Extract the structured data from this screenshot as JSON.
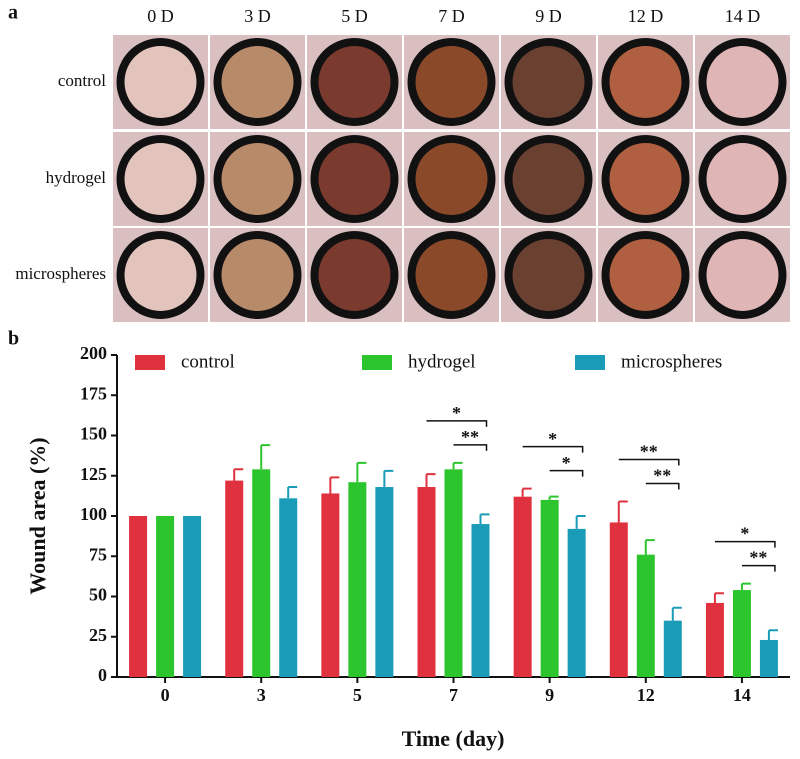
{
  "panel_a": {
    "label": "a",
    "columns": [
      "0 D",
      "3 D",
      "5 D",
      "7 D",
      "9 D",
      "12 D",
      "14 D"
    ],
    "rows": [
      "control",
      "hydrogel",
      "microspheres"
    ]
  },
  "chart_data": {
    "type": "bar",
    "panel_label": "b",
    "x_label": "Time (day)",
    "y_label": "Wound area (%)",
    "categories": [
      "0",
      "3",
      "5",
      "7",
      "9",
      "12",
      "14"
    ],
    "series": [
      {
        "name": "control",
        "color": "#e0313f",
        "values": [
          100,
          122,
          114,
          118,
          112,
          96,
          46
        ],
        "errors": [
          0,
          7,
          10,
          8,
          5,
          13,
          6
        ]
      },
      {
        "name": "hydrogel",
        "color": "#2dc52d",
        "values": [
          100,
          129,
          121,
          129,
          110,
          76,
          54
        ],
        "errors": [
          0,
          15,
          12,
          4,
          2,
          9,
          4
        ]
      },
      {
        "name": "microspheres",
        "color": "#1a9bb8",
        "values": [
          100,
          111,
          118,
          95,
          92,
          35,
          23
        ],
        "errors": [
          0,
          7,
          10,
          6,
          8,
          8,
          6
        ]
      }
    ],
    "ylim": [
      0,
      200
    ],
    "yticks": [
      0,
      25,
      50,
      75,
      100,
      125,
      150,
      175,
      200
    ],
    "significance": [
      {
        "category": "7",
        "from": "control",
        "to": "microspheres",
        "label": "*"
      },
      {
        "category": "7",
        "from": "hydrogel",
        "to": "microspheres",
        "label": "**"
      },
      {
        "category": "9",
        "from": "control",
        "to": "microspheres",
        "label": "*"
      },
      {
        "category": "9",
        "from": "hydrogel",
        "to": "microspheres",
        "label": "*"
      },
      {
        "category": "12",
        "from": "control",
        "to": "microspheres",
        "label": "**"
      },
      {
        "category": "12",
        "from": "hydrogel",
        "to": "microspheres",
        "label": "**"
      },
      {
        "category": "14",
        "from": "control",
        "to": "microspheres",
        "label": "*"
      },
      {
        "category": "14",
        "from": "hydrogel",
        "to": "microspheres",
        "label": "**"
      }
    ]
  }
}
